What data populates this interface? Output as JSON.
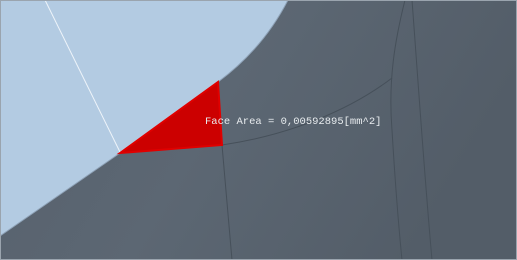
{
  "viewport": {
    "annotation": "Face Area = 0,00592895[mm^2]"
  }
}
